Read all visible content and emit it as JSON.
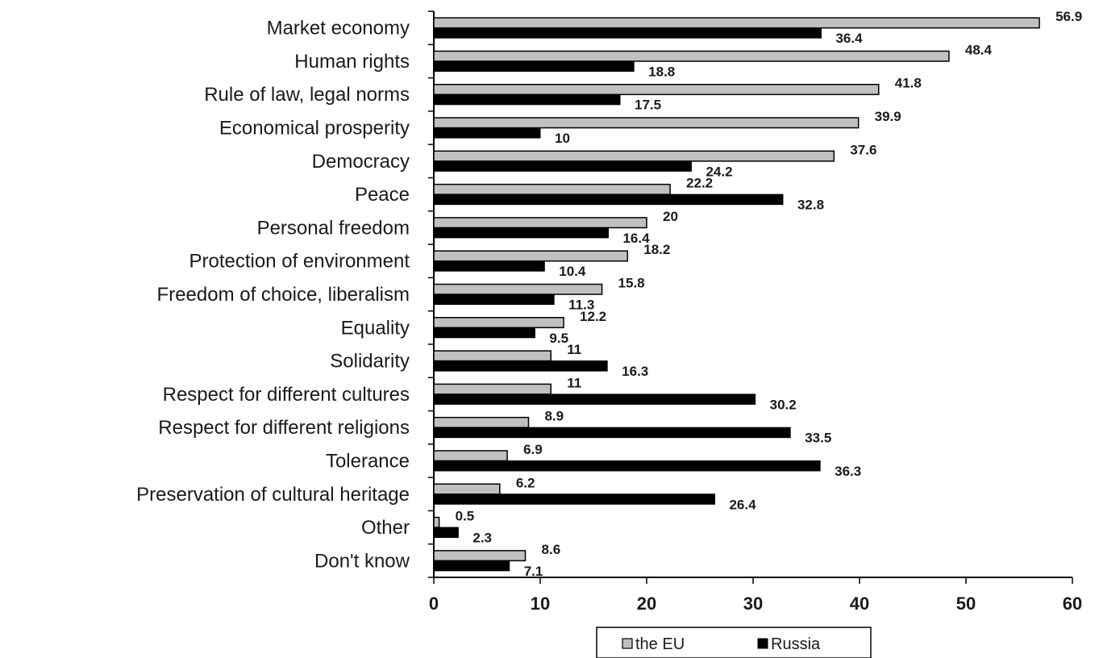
{
  "chart_data": {
    "type": "bar",
    "orientation": "horizontal",
    "categories": [
      "Market economy",
      "Human rights",
      "Rule of law, legal norms",
      "Economical prosperity",
      "Democracy",
      "Peace",
      "Personal freedom",
      "Protection of environment",
      "Freedom of choice, liberalism",
      "Equality",
      "Solidarity",
      "Respect for different cultures",
      "Respect for different religions",
      "Tolerance",
      "Preservation of cultural heritage",
      "Other",
      "Don't know"
    ],
    "series": [
      {
        "name": "the EU",
        "color": "#c0c0c0",
        "values": [
          56.9,
          48.4,
          41.8,
          39.9,
          37.6,
          22.2,
          20,
          18.2,
          15.8,
          12.2,
          11,
          11,
          8.9,
          6.9,
          6.2,
          0.5,
          8.6
        ],
        "labels": [
          "56.9",
          "48.4",
          "41.8",
          "39.9",
          "37.6",
          "22.2",
          "20",
          "18.2",
          "15.8",
          "12.2",
          "11",
          "11",
          "8.9",
          "6.9",
          "6.2",
          "0.5",
          "8.6"
        ]
      },
      {
        "name": "Russia",
        "color": "#000000",
        "values": [
          36.4,
          18.8,
          17.5,
          10,
          24.2,
          32.8,
          16.4,
          10.4,
          11.3,
          9.5,
          16.3,
          30.2,
          33.5,
          36.3,
          26.4,
          2.3,
          7.1
        ],
        "labels": [
          "36.4",
          "18.8",
          "17.5",
          "10",
          "24.2",
          "32.8",
          "16.4",
          "10.4",
          "11.3",
          "9.5",
          "16.3",
          "30.2",
          "33.5",
          "36.3",
          "26.4",
          "2.3",
          "7.1"
        ]
      }
    ],
    "xlim": [
      0,
      60
    ],
    "xticks": [
      "0",
      "10",
      "20",
      "30",
      "40",
      "50",
      "60"
    ],
    "grid": false,
    "legend_position": "bottom-center",
    "title": "",
    "xlabel": "",
    "ylabel": ""
  }
}
